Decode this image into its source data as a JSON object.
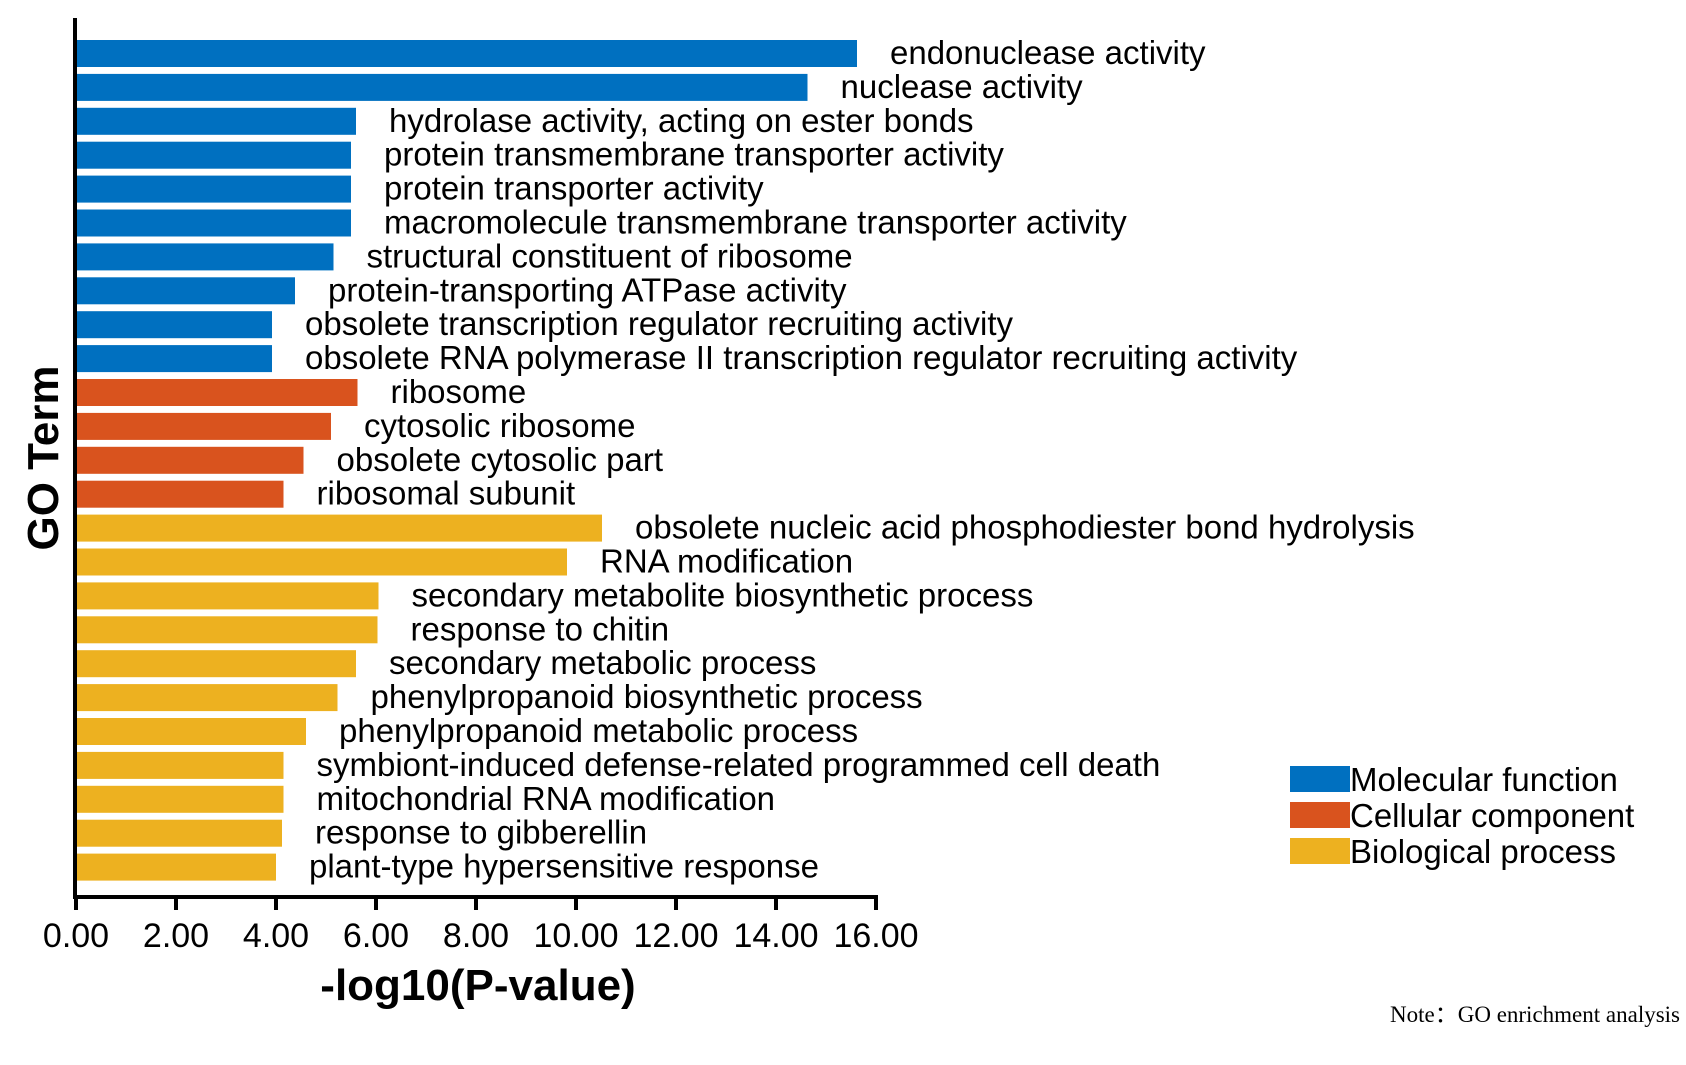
{
  "chart_data": {
    "type": "bar",
    "orientation": "horizontal",
    "xlabel": "-log10(P-value)",
    "ylabel": "GO Term",
    "xlim": [
      0,
      16
    ],
    "xticks": [
      "0.00",
      "2.00",
      "4.00",
      "6.00",
      "8.00",
      "10.00",
      "12.00",
      "14.00",
      "16.00"
    ],
    "xtick_values": [
      0,
      2,
      4,
      6,
      8,
      10,
      12,
      14,
      16
    ],
    "grid": false,
    "legend_position": "bottom-right",
    "legend": [
      {
        "name": "Molecular function",
        "color": "#0070C0"
      },
      {
        "name": "Cellular component",
        "color": "#D9531E"
      },
      {
        "name": "Biological process",
        "color": "#EDB120"
      }
    ],
    "bars": [
      {
        "label": "endonuclease activity",
        "value": 15.62,
        "category": "Molecular function"
      },
      {
        "label": "nuclease activity",
        "value": 14.63,
        "category": "Molecular function"
      },
      {
        "label": "hydrolase activity, acting on ester bonds",
        "value": 5.6,
        "category": "Molecular function"
      },
      {
        "label": "protein transmembrane transporter activity",
        "value": 5.5,
        "category": "Molecular function"
      },
      {
        "label": "protein transporter activity",
        "value": 5.5,
        "category": "Molecular function"
      },
      {
        "label": "macromolecule transmembrane transporter activity",
        "value": 5.5,
        "category": "Molecular function"
      },
      {
        "label": "structural constituent of ribosome",
        "value": 5.15,
        "category": "Molecular function"
      },
      {
        "label": "protein-transporting ATPase activity",
        "value": 4.38,
        "category": "Molecular function"
      },
      {
        "label": "obsolete transcription regulator recruiting activity",
        "value": 3.92,
        "category": "Molecular function"
      },
      {
        "label": "obsolete RNA polymerase II transcription regulator recruiting activity",
        "value": 3.92,
        "category": "Molecular function"
      },
      {
        "label": "ribosome",
        "value": 5.63,
        "category": "Cellular component"
      },
      {
        "label": "cytosolic ribosome",
        "value": 5.1,
        "category": "Cellular component"
      },
      {
        "label": "obsolete cytosolic part",
        "value": 4.55,
        "category": "Cellular component"
      },
      {
        "label": "ribosomal subunit",
        "value": 4.15,
        "category": "Cellular component"
      },
      {
        "label": "obsolete nucleic acid phosphodiester bond hydrolysis",
        "value": 10.52,
        "category": "Biological process"
      },
      {
        "label": "RNA modification",
        "value": 9.82,
        "category": "Biological process"
      },
      {
        "label": "secondary metabolite biosynthetic process",
        "value": 6.05,
        "category": "Biological process"
      },
      {
        "label": "response to chitin",
        "value": 6.03,
        "category": "Biological process"
      },
      {
        "label": "secondary metabolic process",
        "value": 5.6,
        "category": "Biological process"
      },
      {
        "label": "phenylpropanoid biosynthetic process",
        "value": 5.23,
        "category": "Biological process"
      },
      {
        "label": "phenylpropanoid metabolic process",
        "value": 4.6,
        "category": "Biological process"
      },
      {
        "label": "symbiont-induced defense-related programmed cell death",
        "value": 4.15,
        "category": "Biological process"
      },
      {
        "label": "mitochondrial RNA modification",
        "value": 4.15,
        "category": "Biological process"
      },
      {
        "label": "response to gibberellin",
        "value": 4.12,
        "category": "Biological process"
      },
      {
        "label": "plant-type hypersensitive response",
        "value": 4.0,
        "category": "Biological process"
      }
    ]
  },
  "note": "Note：GO enrichment analysis"
}
